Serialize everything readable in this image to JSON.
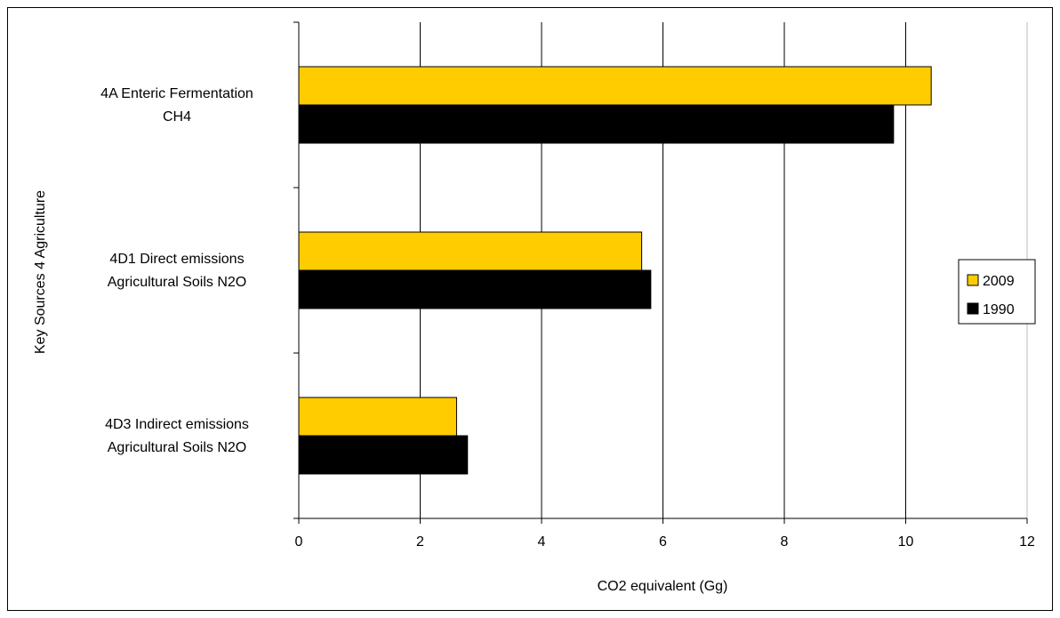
{
  "chart_data": {
    "type": "bar",
    "orientation": "horizontal",
    "categories": [
      [
        "4A Enteric Fermentation",
        "CH4"
      ],
      [
        "4D1 Direct emissions",
        "Agricultural Soils N2O"
      ],
      [
        "4D3 Indirect emissions",
        "Agricultural Soils N2O"
      ]
    ],
    "series": [
      {
        "name": "2009",
        "color": "#FFCC00",
        "values": [
          10.42,
          5.65,
          2.6
        ]
      },
      {
        "name": "1990",
        "color": "#000000",
        "values": [
          9.8,
          5.8,
          2.78
        ]
      }
    ],
    "xlabel": "CO2 equivalent (Gg)",
    "ylabel": "Key Sources 4 Agriculture",
    "xlim": [
      0,
      12
    ],
    "xticks": [
      0,
      2,
      4,
      6,
      8,
      10,
      12
    ],
    "grid": "vertical",
    "legend_position": "right"
  }
}
